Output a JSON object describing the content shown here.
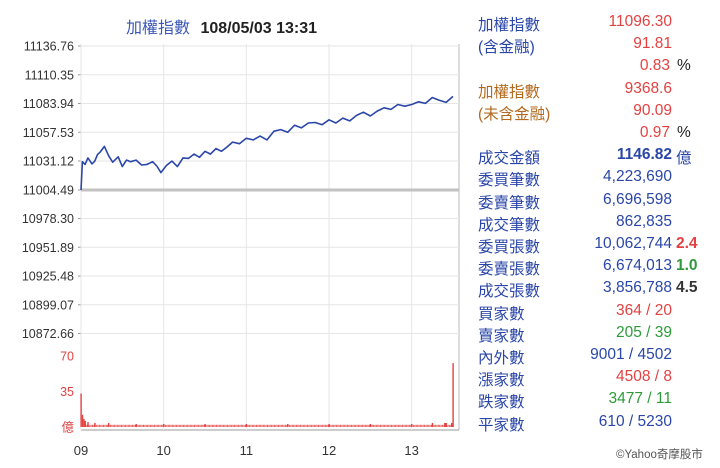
{
  "title": {
    "name": "加權指數",
    "datetime": "108/05/03 13:31"
  },
  "chart_data": {
    "type": "line",
    "title": "加權指數 108/05/03 13:31",
    "price_axis": {
      "ylim": [
        10859.37,
        11136.76
      ],
      "ticks": [
        "11136.76",
        "11110.35",
        "11083.94",
        "11057.53",
        "11031.12",
        "11004.49",
        "10978.30",
        "10951.89",
        "10925.48",
        "10899.07",
        "10872.66"
      ],
      "reference_line": 11004.49
    },
    "volume_axis": {
      "unit": "億",
      "ticks": [
        "70",
        "35",
        "億"
      ],
      "ylim": [
        0,
        70
      ]
    },
    "x_ticks": [
      "09",
      "10",
      "11",
      "12",
      "13"
    ],
    "x_range": [
      "09:00",
      "13:30"
    ],
    "price_series": {
      "name": "加權指數",
      "color": "#2a46a8",
      "time": [
        "09:00",
        "09:01",
        "09:03",
        "09:05",
        "09:08",
        "09:10",
        "09:12",
        "09:14",
        "09:17",
        "09:20",
        "09:23",
        "09:27",
        "09:30",
        "09:33",
        "09:36",
        "09:40",
        "09:44",
        "09:48",
        "09:52",
        "09:55",
        "09:58",
        "10:02",
        "10:06",
        "10:10",
        "10:14",
        "10:18",
        "10:22",
        "10:26",
        "10:30",
        "10:34",
        "10:38",
        "10:42",
        "10:46",
        "10:50",
        "10:55",
        "11:00",
        "11:05",
        "11:10",
        "11:15",
        "11:20",
        "11:25",
        "11:30",
        "11:35",
        "11:40",
        "11:45",
        "11:50",
        "11:55",
        "12:00",
        "12:05",
        "12:10",
        "12:15",
        "12:20",
        "12:25",
        "12:30",
        "12:35",
        "12:40",
        "12:45",
        "12:50",
        "12:55",
        "13:00",
        "13:05",
        "13:10",
        "13:15",
        "13:20",
        "13:25",
        "13:30"
      ],
      "values": [
        11004.5,
        11030.5,
        11028.0,
        11034.0,
        11028.5,
        11031.0,
        11037.0,
        11039.5,
        11044.5,
        11036.0,
        11030.0,
        11035.0,
        11026.0,
        11032.0,
        11030.5,
        11032.0,
        11027.5,
        11028.0,
        11030.5,
        11026.5,
        11020.5,
        11027.0,
        11031.0,
        11026.0,
        11034.0,
        11033.5,
        11037.5,
        11034.5,
        11040.0,
        11037.5,
        11042.5,
        11040.0,
        11044.0,
        11048.5,
        11047.0,
        11052.0,
        11050.5,
        11054.0,
        11050.5,
        11058.5,
        11060.0,
        11057.5,
        11064.0,
        11061.5,
        11066.0,
        11066.5,
        11064.5,
        11069.0,
        11066.0,
        11070.5,
        11068.0,
        11073.0,
        11076.0,
        11072.5,
        11077.0,
        11080.0,
        11078.5,
        11083.0,
        11081.5,
        11083.0,
        11085.5,
        11084.0,
        11089.5,
        11087.0,
        11085.0,
        11090.5
      ]
    },
    "volume_series": {
      "name": "成交金額",
      "color": "#e34141",
      "time": [
        "09:00",
        "09:01",
        "09:02",
        "09:03",
        "09:05",
        "09:10",
        "09:20",
        "09:40",
        "10:00",
        "10:30",
        "11:00",
        "11:30",
        "12:00",
        "12:30",
        "13:00",
        "13:15",
        "13:24",
        "13:25",
        "13:29",
        "13:30"
      ],
      "values": [
        33,
        12,
        8,
        6,
        5,
        4,
        4,
        3,
        3,
        3,
        3,
        3,
        3,
        3,
        3,
        4,
        4,
        4,
        4,
        63
      ]
    }
  },
  "stats": [
    {
      "label": "加權指數",
      "value": "11096.30",
      "label_color": "#2a46a8",
      "value_color": "#e34141"
    },
    {
      "label": "(含金融)",
      "value": "91.81",
      "label_color": "#2a46a8",
      "value_color": "#e34141"
    },
    {
      "label": "",
      "value": "0.83",
      "value_color": "#e34141",
      "suffix": "%",
      "suffix_color": "#222222"
    },
    {
      "label": "加權指數",
      "value": "9368.6",
      "label_color": "#b36a1f",
      "value_color": "#e34141"
    },
    {
      "label": "(未含金融)",
      "value": "90.09",
      "label_color": "#b36a1f",
      "value_color": "#e34141"
    },
    {
      "label": "",
      "value": "0.97",
      "value_color": "#e34141",
      "suffix": "%",
      "suffix_color": "#222222"
    },
    {
      "label": "成交金額",
      "value": "1146.82",
      "label_color": "#2a46a8",
      "value_color": "#2a46a8",
      "value_bold": true,
      "suffix": "億",
      "suffix_color": "#2a46a8"
    },
    {
      "label": "委買筆數",
      "value": "4,223,690",
      "label_color": "#2a46a8",
      "value_color": "#2a46a8"
    },
    {
      "label": "委賣筆數",
      "value": "6,696,598",
      "label_color": "#2a46a8",
      "value_color": "#2a46a8"
    },
    {
      "label": "成交筆數",
      "value": "862,835",
      "label_color": "#2a46a8",
      "value_color": "#2a46a8"
    },
    {
      "label": "委買張數",
      "value": "10,062,744",
      "label_color": "#2a46a8",
      "value_color": "#2a46a8",
      "suffix": "2.4",
      "suffix_color": "#e34141"
    },
    {
      "label": "委賣張數",
      "value": "6,674,013",
      "label_color": "#2a46a8",
      "value_color": "#2a46a8",
      "suffix": "1.0",
      "suffix_color": "#2e9a3a"
    },
    {
      "label": "成交張數",
      "value": "3,856,788",
      "label_color": "#2a46a8",
      "value_color": "#2a46a8",
      "suffix": "4.5",
      "suffix_color": "#333333"
    },
    {
      "label": "買家數",
      "value": "364 / 20",
      "label_color": "#2a46a8",
      "value_color": "#e34141"
    },
    {
      "label": "賣家數",
      "value": "205 / 39",
      "label_color": "#2a46a8",
      "value_color": "#2e9a3a"
    },
    {
      "label": "內外數",
      "value": "9001 / 4502",
      "label_color": "#2a46a8",
      "value_color": "#2a46a8"
    },
    {
      "label": "漲家數",
      "value": "4508 / 8",
      "label_color": "#2a46a8",
      "value_color": "#e34141"
    },
    {
      "label": "跌家數",
      "value": "3477 / 11",
      "label_color": "#2a46a8",
      "value_color": "#2e9a3a"
    },
    {
      "label": "平家數",
      "value": "610 / 5230",
      "label_color": "#2a46a8",
      "value_color": "#2a46a8"
    }
  ],
  "copyright": "©Yahoo奇摩股市"
}
